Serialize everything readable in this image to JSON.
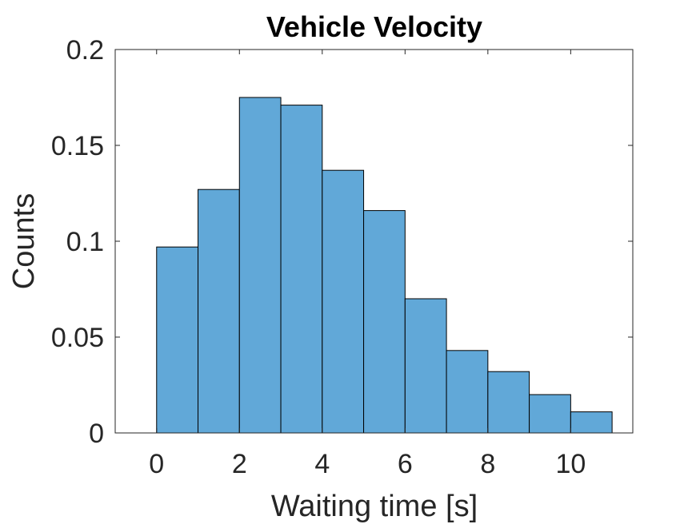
{
  "chart_data": {
    "type": "bar",
    "title": "Vehicle Velocity",
    "xlabel": "Waiting time [s]",
    "ylabel": "Counts",
    "bin_edges": [
      0,
      1,
      2,
      3,
      4,
      5,
      6,
      7,
      8,
      9,
      10,
      11
    ],
    "values": [
      0.097,
      0.127,
      0.175,
      0.171,
      0.137,
      0.116,
      0.07,
      0.043,
      0.032,
      0.02,
      0.011
    ],
    "xlim": [
      -1,
      11.5
    ],
    "ylim": [
      0,
      0.2
    ],
    "xticks": [
      0,
      2,
      4,
      6,
      8,
      10
    ],
    "xtick_labels": [
      "0",
      "2",
      "4",
      "6",
      "8",
      "10"
    ],
    "yticks": [
      0,
      0.05,
      0.1,
      0.15,
      0.2
    ],
    "ytick_labels": [
      "0",
      "0.05",
      "0.1",
      "0.15",
      "0.2"
    ],
    "bar_color": "#61a8d8",
    "edge_color": "#000000",
    "grid": false
  }
}
